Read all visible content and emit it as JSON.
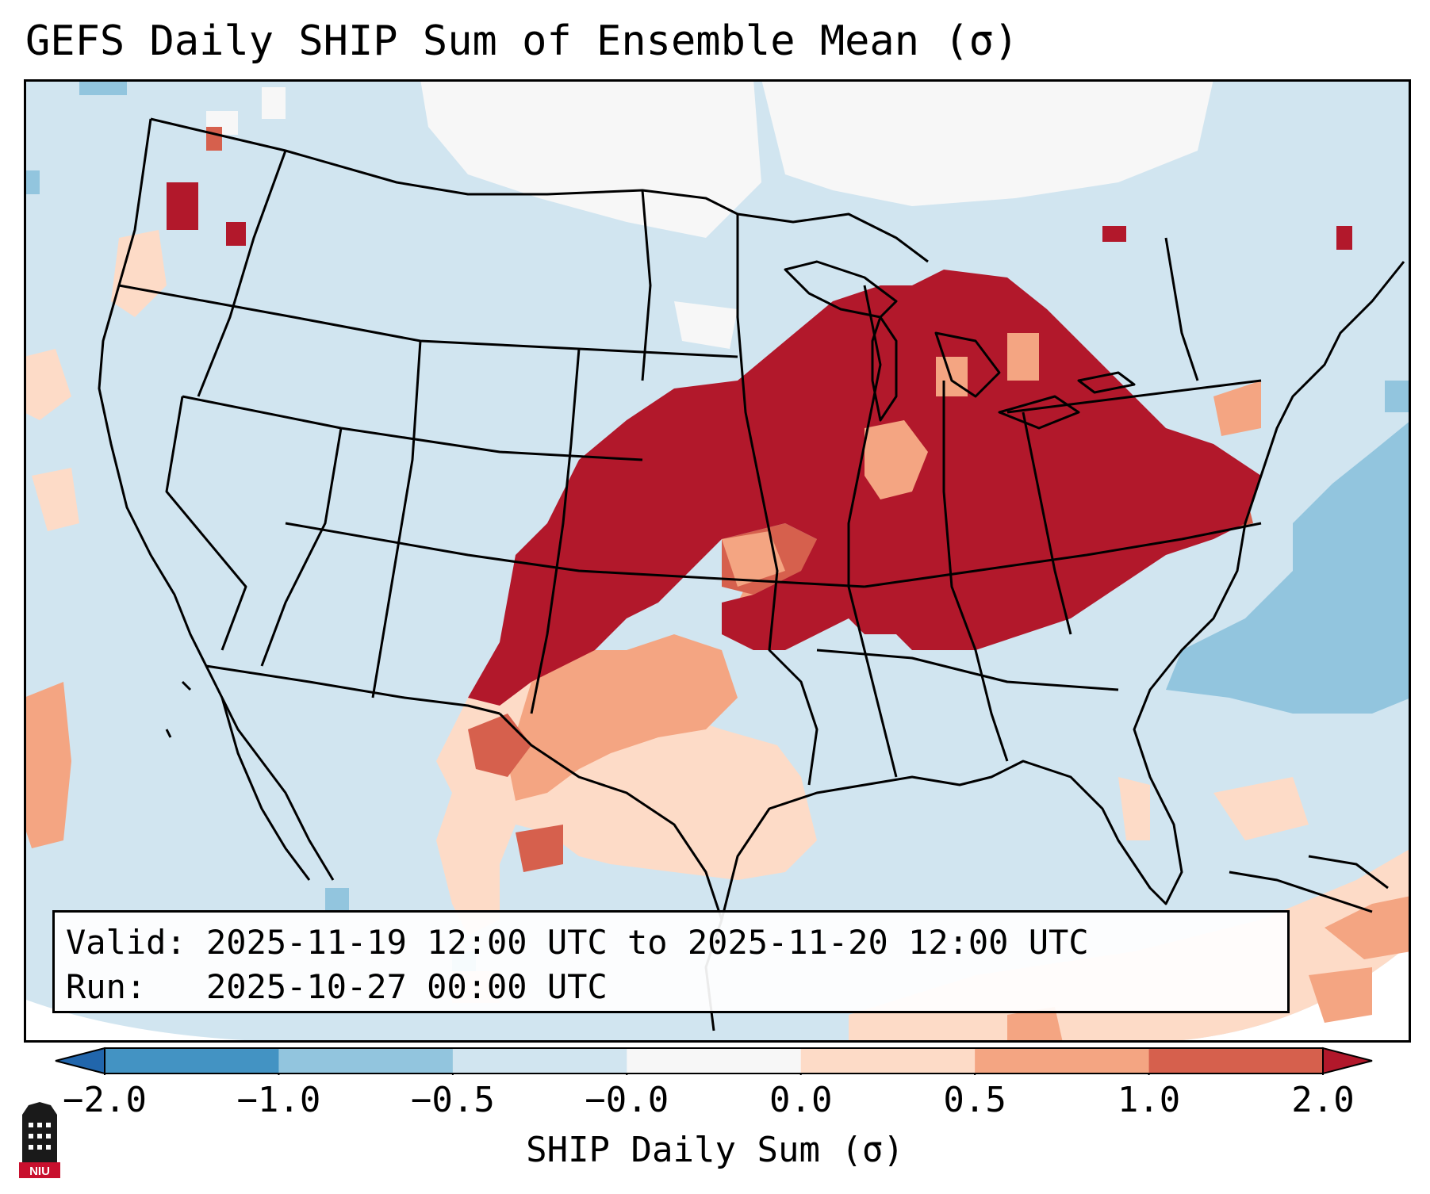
{
  "title": "GEFS Daily SHIP Sum of Ensemble Mean (σ)",
  "info": {
    "valid_label": "Valid:",
    "valid_value": "2025-11-19 12:00 UTC to 2025-11-20 12:00 UTC",
    "run_label": "Run:",
    "run_value": "2025-10-27 00:00 UTC"
  },
  "colorbar": {
    "label": "SHIP Daily Sum (σ)",
    "ticks": [
      "−2.0",
      "−1.0",
      "−0.5",
      "−0.0",
      "0.0",
      "0.5",
      "1.0",
      "2.0"
    ],
    "colors": [
      "#2166ac",
      "#4393c3",
      "#92c5de",
      "#d1e5f0",
      "#f7f7f7",
      "#fddbc7",
      "#f4a582",
      "#d6604d",
      "#b2182b"
    ],
    "extend": "both"
  },
  "logo": {
    "text": "NIU",
    "color": "#c8102e"
  },
  "map": {
    "projection": "Lambert conformal, CONUS",
    "background_class_color": "#d1e5f0",
    "max_positive_color": "#b2182b",
    "no_data_color": "#ffffff",
    "boundary_color": "#000000"
  }
}
